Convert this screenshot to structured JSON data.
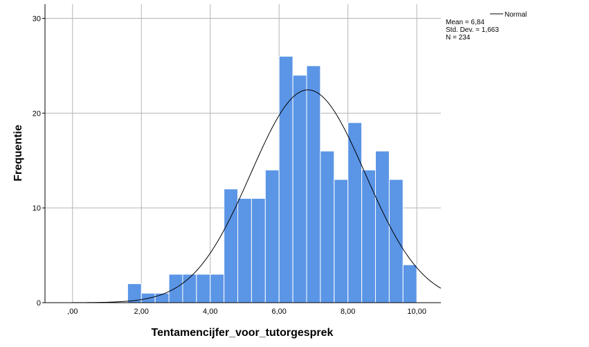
{
  "chart_data": {
    "type": "bar",
    "title": "",
    "xlabel": "Tentamencijfer_voor_tutorgesprek",
    "ylabel": "Frequentie",
    "xlim": [
      -0.8,
      10.7
    ],
    "ylim": [
      0,
      31.5
    ],
    "x_ticks": [
      {
        "value": 0,
        "label": ",00"
      },
      {
        "value": 2,
        "label": "2,00"
      },
      {
        "value": 4,
        "label": "4,00"
      },
      {
        "value": 6,
        "label": "6,00"
      },
      {
        "value": 8,
        "label": "8,00"
      },
      {
        "value": 10,
        "label": "10,00"
      }
    ],
    "y_ticks": [
      {
        "value": 0,
        "label": "0"
      },
      {
        "value": 10,
        "label": "10"
      },
      {
        "value": 20,
        "label": "20"
      },
      {
        "value": 30,
        "label": "30"
      }
    ],
    "bin_width": 0.4,
    "bins": [
      {
        "start": 1.6,
        "count": 2
      },
      {
        "start": 2.0,
        "count": 1
      },
      {
        "start": 2.4,
        "count": 1
      },
      {
        "start": 2.8,
        "count": 3
      },
      {
        "start": 3.2,
        "count": 3
      },
      {
        "start": 3.6,
        "count": 3
      },
      {
        "start": 4.0,
        "count": 3
      },
      {
        "start": 4.4,
        "count": 12
      },
      {
        "start": 4.8,
        "count": 11
      },
      {
        "start": 5.2,
        "count": 11
      },
      {
        "start": 5.6,
        "count": 14
      },
      {
        "start": 6.0,
        "count": 26
      },
      {
        "start": 6.4,
        "count": 24
      },
      {
        "start": 6.8,
        "count": 25
      },
      {
        "start": 7.2,
        "count": 16
      },
      {
        "start": 7.6,
        "count": 13
      },
      {
        "start": 8.0,
        "count": 19
      },
      {
        "start": 8.4,
        "count": 14
      },
      {
        "start": 8.8,
        "count": 16
      },
      {
        "start": 9.2,
        "count": 13
      },
      {
        "start": 9.6,
        "count": 4
      }
    ],
    "normal_curve": {
      "mean": 6.84,
      "sd": 1.663,
      "n": 234
    },
    "grid": true,
    "bar_color": "#5b95e6",
    "bar_edge_color": "#ffffff",
    "grid_color": "#b4b4b4",
    "curve_color": "#000000",
    "legend": {
      "placement": "top-right",
      "series_label": "Normal",
      "stats": [
        "Mean = 6,84",
        "Std. Dev. = 1,663",
        "N = 234"
      ]
    }
  }
}
